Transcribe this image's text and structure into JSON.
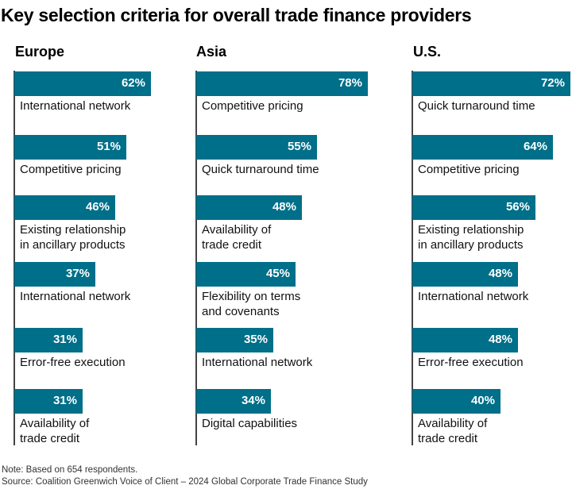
{
  "chart_data": {
    "type": "bar",
    "orientation": "horizontal",
    "title": "Key selection criteria for overall trade finance providers",
    "value_suffix": "%",
    "xlim": [
      0,
      100
    ],
    "bar_color": "#006f89",
    "panels": [
      {
        "name": "Europe",
        "categories": [
          "International network",
          "Competitive pricing",
          "Existing relationship\nin ancillary products",
          "International network",
          "Error-free execution",
          "Availability of\ntrade credit"
        ],
        "values": [
          62,
          51,
          46,
          37,
          31,
          31
        ]
      },
      {
        "name": "Asia",
        "categories": [
          "Competitive pricing",
          "Quick turnaround time",
          "Availability of\ntrade credit",
          "Flexibility on terms\nand covenants",
          "International network",
          "Digital capabilities"
        ],
        "values": [
          78,
          55,
          48,
          45,
          35,
          34
        ]
      },
      {
        "name": "U.S.",
        "categories": [
          "Quick turnaround time",
          "Competitive pricing",
          "Existing relationship\nin ancillary products",
          "International network",
          "Error-free execution",
          "Availability of\ntrade credit"
        ],
        "values": [
          72,
          64,
          56,
          48,
          48,
          40
        ]
      }
    ],
    "note": "Note: Based on 654 respondents.",
    "source": "Source: Coalition Greenwich Voice of Client – 2024 Global Corporate Trade Finance Study"
  }
}
